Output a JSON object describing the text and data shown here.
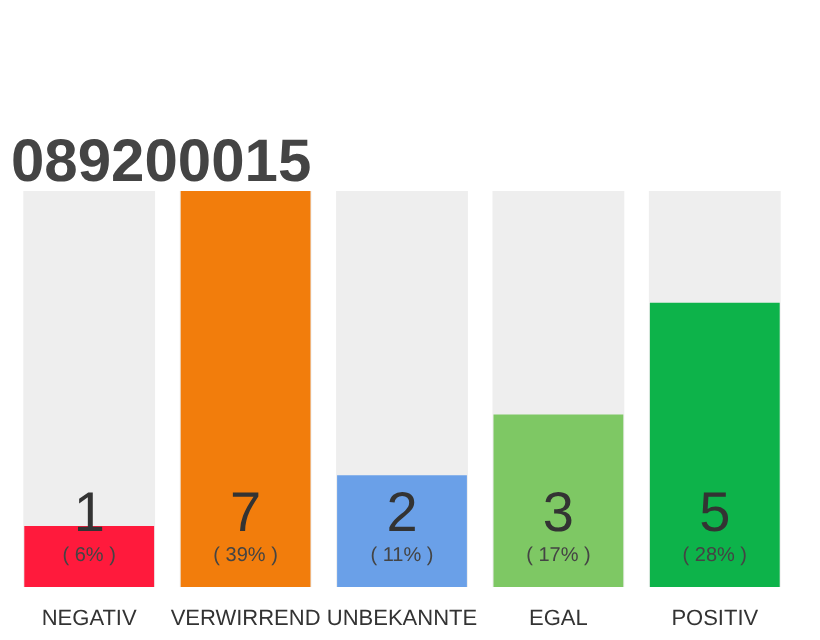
{
  "chart_data": {
    "type": "bar",
    "title": "089200015",
    "categories": [
      "NEGATIV",
      "VERWIRREND",
      "UNBEKANNTE",
      "EGAL",
      "POSITIV"
    ],
    "values": [
      6,
      39,
      11,
      17,
      28
    ],
    "colors": [
      "#ff1a3c",
      "#f27d0c",
      "#6aa0e8",
      "#7ec864",
      "#0db34a"
    ],
    "value_labels": [
      "( 6% )",
      "( 39% )",
      "( 11% )",
      "( 17% )",
      "( 28% )"
    ],
    "annotations": [
      "1",
      "7",
      "2",
      "3",
      "5"
    ],
    "tick_labels": "x"
  }
}
